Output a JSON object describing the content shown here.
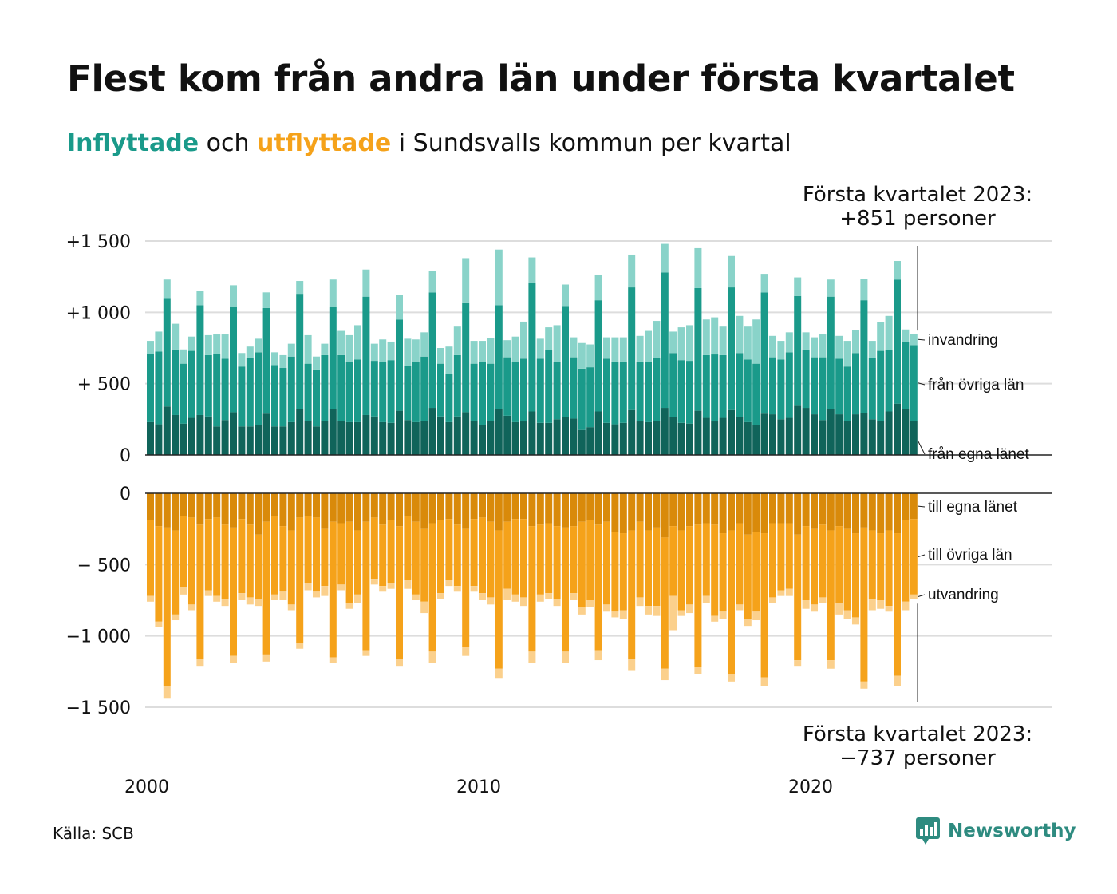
{
  "title": "Flest kom från andra län under första kvartalet",
  "subtitle": {
    "in_word": "Inflyttade",
    "mid": " och ",
    "out_word": "utflyttade",
    "rest": " i Sundsvalls kommun per kvartal"
  },
  "source": "Källa: SCB",
  "logo": {
    "name": "Newsworthy",
    "icon": "newsworthy-chart-bubble-icon"
  },
  "colors": {
    "in_county": "#10645a",
    "in_other": "#1a9a8a",
    "in_immig": "#89d3c9",
    "out_county": "#d98a0a",
    "out_other": "#f5a21a",
    "out_emig": "#fbd08c",
    "grid": "#dddddd",
    "axis": "#222222"
  },
  "annotations": {
    "top": [
      "Första kvartalet 2023:",
      "+851 personer"
    ],
    "bottom": [
      "Första kvartalet 2023:",
      "−737 personer"
    ]
  },
  "chart_data": [
    {
      "type": "bar",
      "stacked": true,
      "panel": "inflyttade",
      "x_start": "2000 Q1",
      "x_ticks": [
        "2000",
        "2010",
        "2020"
      ],
      "ylim": [
        0,
        1500
      ],
      "y_ticks": [
        0,
        500,
        1000,
        1500
      ],
      "y_tick_labels": [
        "0",
        "+  500",
        "+1 000",
        "+1 500"
      ],
      "grid": true,
      "series": [
        {
          "name": "från egna länet",
          "values": [
            230,
            215,
            340,
            280,
            220,
            260,
            280,
            270,
            200,
            245,
            300,
            200,
            200,
            210,
            290,
            200,
            200,
            230,
            320,
            240,
            200,
            240,
            320,
            240,
            230,
            230,
            280,
            270,
            230,
            225,
            310,
            245,
            230,
            240,
            330,
            270,
            230,
            270,
            300,
            240,
            210,
            240,
            320,
            275,
            230,
            235,
            305,
            225,
            225,
            250,
            265,
            255,
            175,
            195,
            305,
            225,
            215,
            225,
            315,
            235,
            230,
            240,
            330,
            265,
            225,
            220,
            310,
            260,
            235,
            260,
            315,
            265,
            230,
            210,
            290,
            285,
            250,
            260,
            345,
            330,
            285,
            245,
            320,
            285,
            240,
            285,
            295,
            250,
            240,
            305,
            360,
            320,
            240
          ]
        },
        {
          "name": "från övriga län",
          "values": [
            480,
            510,
            760,
            460,
            420,
            470,
            770,
            430,
            510,
            430,
            740,
            420,
            480,
            510,
            740,
            430,
            410,
            460,
            810,
            400,
            400,
            460,
            720,
            460,
            420,
            440,
            830,
            390,
            420,
            440,
            640,
            380,
            420,
            450,
            810,
            370,
            340,
            430,
            770,
            400,
            440,
            400,
            730,
            410,
            420,
            440,
            900,
            450,
            510,
            400,
            780,
            430,
            430,
            420,
            780,
            450,
            440,
            430,
            860,
            420,
            420,
            440,
            950,
            450,
            440,
            440,
            860,
            440,
            470,
            440,
            860,
            450,
            440,
            430,
            850,
            400,
            420,
            460,
            770,
            410,
            400,
            440,
            790,
            390,
            380,
            430,
            790,
            430,
            490,
            430,
            870,
            470,
            530
          ]
        },
        {
          "name": "invandring",
          "values": [
            90,
            140,
            130,
            180,
            100,
            100,
            100,
            140,
            135,
            170,
            150,
            95,
            80,
            95,
            110,
            90,
            90,
            90,
            90,
            200,
            90,
            80,
            190,
            170,
            190,
            240,
            190,
            120,
            160,
            130,
            170,
            190,
            160,
            170,
            150,
            110,
            190,
            200,
            310,
            160,
            150,
            180,
            390,
            120,
            180,
            260,
            180,
            140,
            160,
            260,
            150,
            140,
            180,
            160,
            180,
            150,
            170,
            170,
            230,
            180,
            220,
            260,
            200,
            150,
            230,
            250,
            280,
            250,
            260,
            200,
            220,
            260,
            230,
            310,
            130,
            150,
            130,
            140,
            130,
            120,
            140,
            160,
            120,
            160,
            180,
            160,
            150,
            120,
            200,
            240,
            130,
            90,
            80
          ]
        }
      ]
    },
    {
      "type": "bar",
      "stacked": true,
      "panel": "utflyttade",
      "ylim": [
        -1500,
        0
      ],
      "y_ticks": [
        0,
        -500,
        -1000,
        -1500
      ],
      "y_tick_labels": [
        "0",
        "−  500",
        "−1 000",
        "−1 500"
      ],
      "grid": true,
      "series": [
        {
          "name": "till egna länet",
          "values": [
            -190,
            -230,
            -240,
            -260,
            -160,
            -170,
            -220,
            -180,
            -170,
            -220,
            -240,
            -180,
            -220,
            -290,
            -200,
            -160,
            -230,
            -260,
            -170,
            -160,
            -170,
            -250,
            -200,
            -210,
            -200,
            -260,
            -200,
            -170,
            -220,
            -190,
            -230,
            -160,
            -200,
            -250,
            -210,
            -190,
            -180,
            -220,
            -250,
            -180,
            -170,
            -200,
            -260,
            -200,
            -180,
            -180,
            -230,
            -220,
            -210,
            -230,
            -240,
            -230,
            -200,
            -190,
            -220,
            -200,
            -270,
            -280,
            -260,
            -200,
            -260,
            -240,
            -310,
            -230,
            -260,
            -230,
            -220,
            -210,
            -220,
            -280,
            -260,
            -210,
            -290,
            -270,
            -280,
            -210,
            -210,
            -210,
            -290,
            -230,
            -250,
            -220,
            -260,
            -230,
            -250,
            -280,
            -240,
            -260,
            -280,
            -260,
            -280,
            -190,
            -180
          ]
        },
        {
          "name": "till övriga län",
          "values": [
            -530,
            -670,
            -1110,
            -590,
            -500,
            -610,
            -940,
            -500,
            -550,
            -520,
            -900,
            -520,
            -510,
            -450,
            -930,
            -550,
            -460,
            -520,
            -880,
            -470,
            -520,
            -400,
            -950,
            -430,
            -570,
            -450,
            -900,
            -430,
            -430,
            -440,
            -930,
            -450,
            -510,
            -510,
            -900,
            -510,
            -430,
            -430,
            -830,
            -470,
            -530,
            -530,
            -970,
            -470,
            -530,
            -550,
            -880,
            -490,
            -490,
            -510,
            -870,
            -470,
            -600,
            -560,
            -880,
            -580,
            -560,
            -540,
            -900,
            -530,
            -530,
            -550,
            -920,
            -490,
            -560,
            -550,
            -1000,
            -510,
            -640,
            -550,
            -1010,
            -570,
            -590,
            -560,
            -1010,
            -520,
            -470,
            -460,
            -880,
            -520,
            -530,
            -510,
            -910,
            -540,
            -570,
            -590,
            -1080,
            -480,
            -470,
            -530,
            -1000,
            -570,
            -530
          ]
        },
        {
          "name": "utvandring",
          "values": [
            -40,
            -40,
            -90,
            -40,
            -50,
            -40,
            -50,
            -40,
            -40,
            -50,
            -50,
            -50,
            -50,
            -50,
            -50,
            -40,
            -60,
            -40,
            -40,
            -50,
            -40,
            -70,
            -40,
            -40,
            -40,
            -60,
            -40,
            -40,
            -40,
            -40,
            -50,
            -60,
            -40,
            -80,
            -80,
            -40,
            -40,
            -40,
            -60,
            -40,
            -50,
            -50,
            -70,
            -80,
            -50,
            -60,
            -80,
            -50,
            -40,
            -50,
            -80,
            -50,
            -50,
            -50,
            -70,
            -50,
            -40,
            -60,
            -80,
            -60,
            -60,
            -70,
            -80,
            -240,
            -40,
            -60,
            -50,
            -50,
            -40,
            -50,
            -50,
            -40,
            -50,
            -60,
            -60,
            -40,
            -40,
            -50,
            -40,
            -60,
            -50,
            -40,
            -60,
            -80,
            -60,
            -50,
            -50,
            -80,
            -60,
            -40,
            -70,
            -60,
            -30
          ]
        }
      ]
    }
  ]
}
